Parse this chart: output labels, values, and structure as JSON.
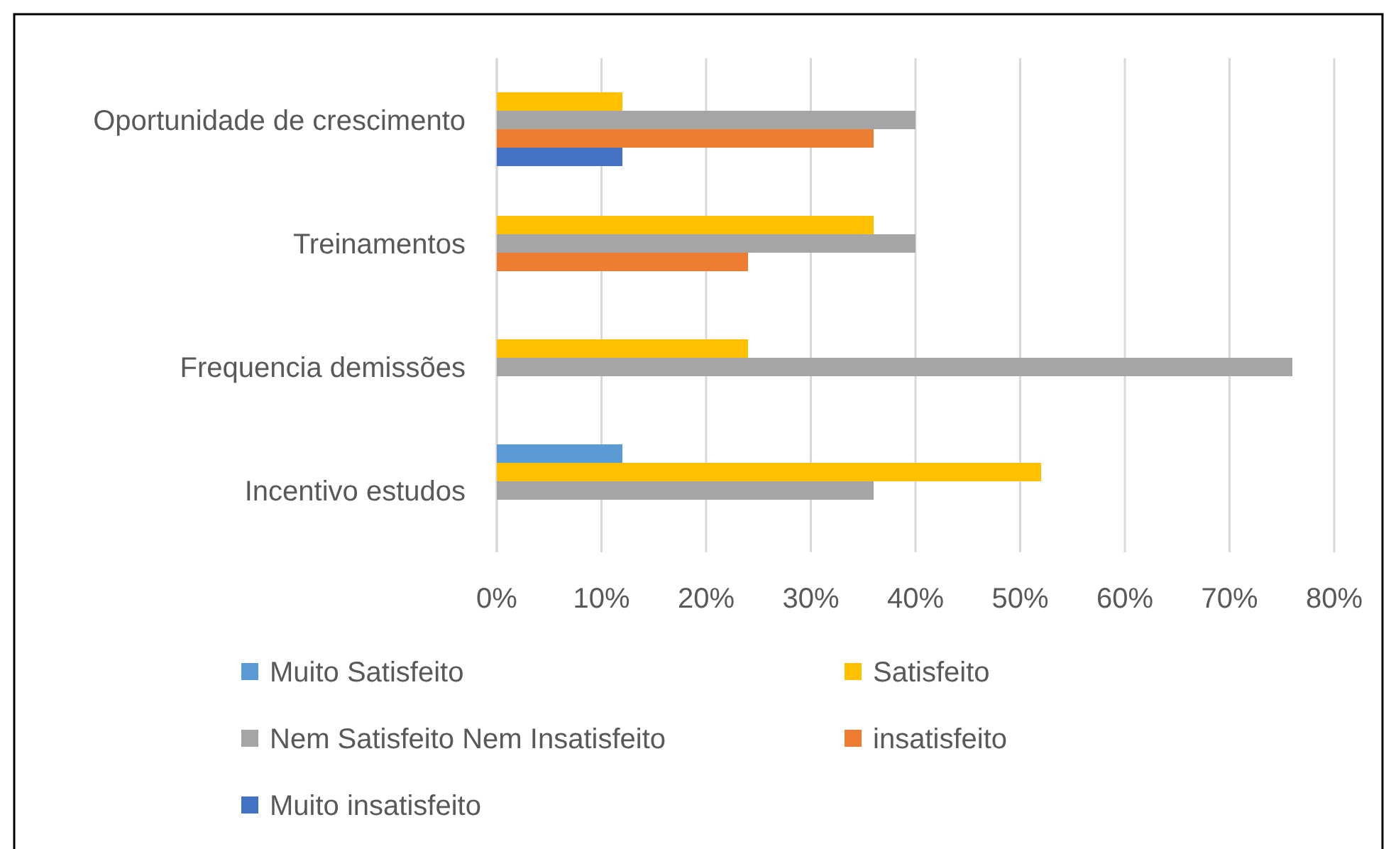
{
  "chart_data": {
    "type": "bar",
    "orientation": "horizontal",
    "categories": [
      "Oportunidade de crescimento",
      "Treinamentos",
      "Frequencia demissões",
      "Incentivo estudos"
    ],
    "series": [
      {
        "name": "Muito Satisfeito",
        "color": "#5b9bd5",
        "values": [
          0,
          0,
          0,
          12
        ]
      },
      {
        "name": "Satisfeito",
        "color": "#ffc000",
        "values": [
          12,
          36,
          24,
          52
        ]
      },
      {
        "name": "Nem Satisfeito Nem Insatisfeito",
        "color": "#a5a5a5",
        "values": [
          40,
          40,
          76,
          36
        ]
      },
      {
        "name": "insatisfeito",
        "color": "#ed7d31",
        "values": [
          36,
          24,
          0,
          0
        ]
      },
      {
        "name": "Muito insatisfeito",
        "color": "#4472c4",
        "values": [
          12,
          0,
          0,
          0
        ]
      }
    ],
    "xlim": [
      0,
      80
    ],
    "xticks": [
      {
        "value": 0,
        "label": "0%"
      },
      {
        "value": 10,
        "label": "10%"
      },
      {
        "value": 20,
        "label": "20%"
      },
      {
        "value": 30,
        "label": "30%"
      },
      {
        "value": 40,
        "label": "40%"
      },
      {
        "value": 50,
        "label": "50%"
      },
      {
        "value": 60,
        "label": "60%"
      },
      {
        "value": 70,
        "label": "70%"
      },
      {
        "value": 80,
        "label": "80%"
      }
    ],
    "grid": "x",
    "legend": "bottom"
  }
}
